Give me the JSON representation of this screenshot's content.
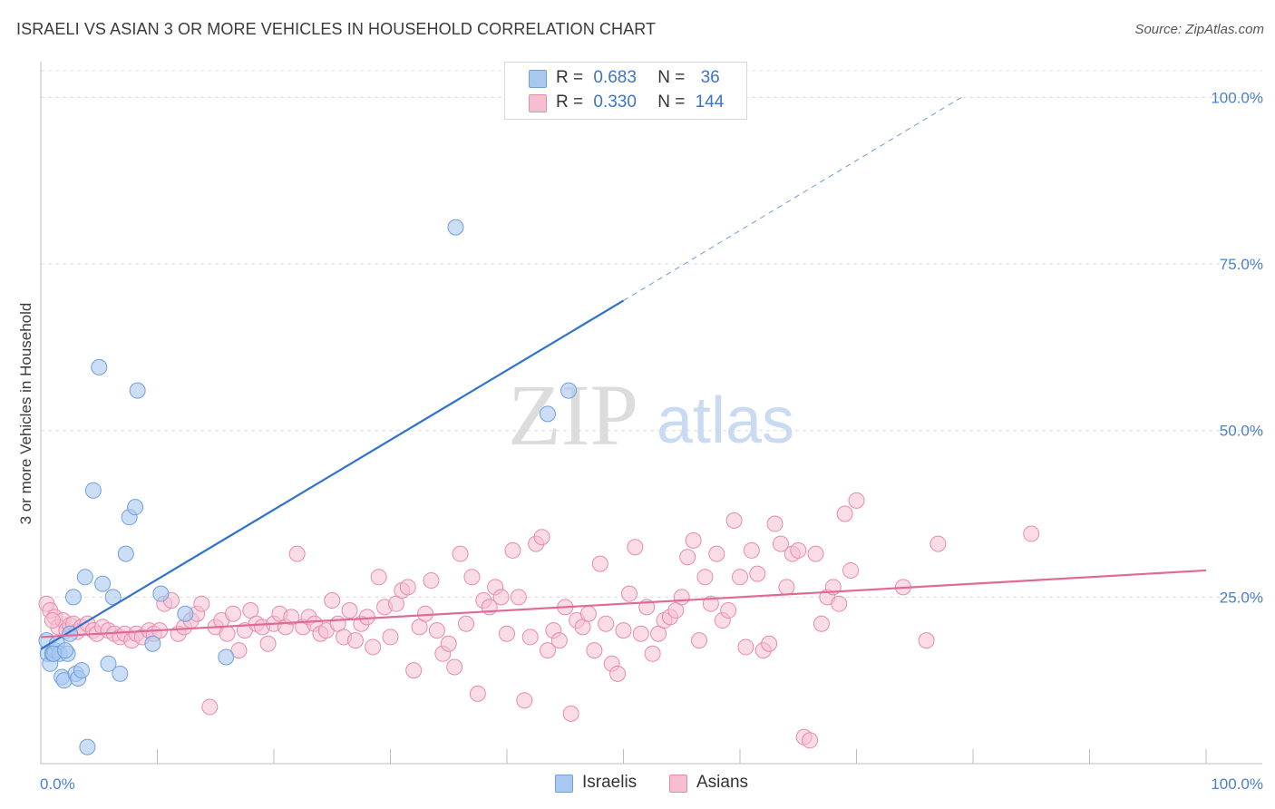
{
  "title": "ISRAELI VS ASIAN 3 OR MORE VEHICLES IN HOUSEHOLD CORRELATION CHART",
  "source": "Source: ZipAtlas.com",
  "watermark": {
    "zip": "ZIP",
    "atlas": "atlas"
  },
  "legend": {
    "r_label": "R =",
    "n_label": "N =",
    "items": [
      {
        "r": "0.683",
        "n": "36"
      },
      {
        "r": "0.330",
        "n": "144"
      }
    ]
  },
  "colors": {
    "israelis_fill": "#a9c8f0",
    "israelis_stroke": "#6f9fdd",
    "israelis_line": "#2f72cc",
    "asians_fill": "#f6bfd1",
    "asians_stroke": "#e98aac",
    "asians_line": "#e06a97",
    "axis_tick_text": "#4a7fd0",
    "grid": "#dcdcdc"
  },
  "chart_data": {
    "type": "scatter",
    "title": "ISRAELI VS ASIAN 3 OR MORE VEHICLES IN HOUSEHOLD CORRELATION CHART",
    "xlabel": "",
    "ylabel": "3 or more Vehicles in Household",
    "xlim": [
      0,
      100
    ],
    "ylim": [
      0,
      104
    ],
    "x_tick_labels": [
      "0.0%",
      "100.0%"
    ],
    "y_ticks": [
      25,
      50,
      75,
      100
    ],
    "y_tick_labels": [
      "25.0%",
      "50.0%",
      "75.0%",
      "100.0%"
    ],
    "grid": true,
    "legend_position": "top-center",
    "series": [
      {
        "name": "Israelis",
        "r": 0.683,
        "n": 36,
        "trend": {
          "x0": 0,
          "y0": 17.2,
          "x1": 50,
          "y1": 69.5,
          "dash_x1": 79,
          "dash_y1": 100
        },
        "points": [
          [
            0.5,
            18.5
          ],
          [
            0.6,
            16.5
          ],
          [
            0.8,
            15.0
          ],
          [
            1.0,
            16.5
          ],
          [
            1.2,
            17.0
          ],
          [
            1.4,
            18.0
          ],
          [
            1.6,
            16.5
          ],
          [
            1.8,
            13.0
          ],
          [
            2.0,
            12.5
          ],
          [
            2.3,
            16.5
          ],
          [
            2.5,
            19.5
          ],
          [
            2.8,
            25.0
          ],
          [
            3.0,
            13.5
          ],
          [
            3.2,
            12.8
          ],
          [
            3.5,
            14.0
          ],
          [
            3.8,
            28.0
          ],
          [
            4.0,
            2.5
          ],
          [
            4.5,
            41.0
          ],
          [
            5.0,
            59.5
          ],
          [
            5.3,
            27.0
          ],
          [
            5.8,
            15.0
          ],
          [
            6.2,
            25.0
          ],
          [
            6.8,
            13.5
          ],
          [
            7.3,
            31.5
          ],
          [
            7.6,
            37.0
          ],
          [
            8.1,
            38.5
          ],
          [
            8.3,
            56.0
          ],
          [
            9.6,
            18.0
          ],
          [
            10.3,
            25.5
          ],
          [
            12.4,
            22.5
          ],
          [
            15.9,
            16.0
          ],
          [
            35.6,
            80.5
          ],
          [
            43.5,
            52.5
          ],
          [
            45.3,
            56.0
          ],
          [
            1.1,
            16.5
          ],
          [
            2.1,
            17.0
          ]
        ]
      },
      {
        "name": "Asians",
        "r": 0.33,
        "n": 144,
        "trend": {
          "x0": 0,
          "y0": 19.0,
          "x1": 100,
          "y1": 29.0
        },
        "points": [
          [
            0.5,
            24.0
          ],
          [
            0.8,
            23.0
          ],
          [
            1.2,
            22.0
          ],
          [
            1.5,
            20.5
          ],
          [
            1.9,
            21.5
          ],
          [
            2.2,
            20.0
          ],
          [
            2.5,
            20.8
          ],
          [
            2.8,
            21.0
          ],
          [
            3.1,
            19.8
          ],
          [
            3.5,
            20.5
          ],
          [
            4.0,
            21.0
          ],
          [
            4.5,
            20.0
          ],
          [
            4.8,
            19.5
          ],
          [
            5.3,
            20.5
          ],
          [
            5.8,
            20.0
          ],
          [
            6.3,
            19.5
          ],
          [
            6.8,
            19.0
          ],
          [
            7.2,
            19.5
          ],
          [
            7.8,
            18.5
          ],
          [
            8.2,
            19.5
          ],
          [
            8.7,
            19.0
          ],
          [
            9.3,
            20.0
          ],
          [
            9.7,
            19.5
          ],
          [
            10.2,
            20.0
          ],
          [
            10.6,
            24.0
          ],
          [
            11.2,
            24.5
          ],
          [
            11.8,
            19.5
          ],
          [
            12.3,
            20.5
          ],
          [
            12.9,
            21.5
          ],
          [
            13.4,
            22.5
          ],
          [
            13.8,
            24.0
          ],
          [
            14.5,
            8.5
          ],
          [
            15.0,
            20.5
          ],
          [
            15.5,
            21.5
          ],
          [
            16.0,
            19.5
          ],
          [
            16.5,
            22.5
          ],
          [
            17.0,
            17.0
          ],
          [
            17.5,
            20.0
          ],
          [
            18.0,
            23.0
          ],
          [
            18.5,
            21.0
          ],
          [
            19.0,
            20.5
          ],
          [
            19.5,
            18.0
          ],
          [
            20.0,
            21.0
          ],
          [
            20.5,
            22.5
          ],
          [
            21.0,
            20.5
          ],
          [
            21.5,
            22.0
          ],
          [
            22.0,
            31.5
          ],
          [
            22.5,
            20.5
          ],
          [
            23.0,
            22.0
          ],
          [
            23.5,
            21.0
          ],
          [
            24.0,
            19.5
          ],
          [
            24.5,
            20.0
          ],
          [
            25.0,
            24.5
          ],
          [
            25.5,
            21.0
          ],
          [
            26.0,
            19.0
          ],
          [
            26.5,
            23.0
          ],
          [
            27.0,
            18.5
          ],
          [
            27.5,
            21.0
          ],
          [
            28.0,
            22.0
          ],
          [
            28.5,
            17.5
          ],
          [
            29.0,
            28.0
          ],
          [
            29.5,
            23.5
          ],
          [
            30.0,
            19.0
          ],
          [
            30.5,
            24.0
          ],
          [
            31.0,
            26.0
          ],
          [
            31.5,
            26.5
          ],
          [
            32.0,
            14.0
          ],
          [
            32.5,
            20.5
          ],
          [
            33.0,
            22.5
          ],
          [
            33.5,
            27.5
          ],
          [
            34.0,
            20.0
          ],
          [
            34.5,
            16.5
          ],
          [
            35.0,
            18.0
          ],
          [
            35.5,
            14.5
          ],
          [
            36.0,
            31.5
          ],
          [
            36.5,
            21.0
          ],
          [
            37.0,
            28.0
          ],
          [
            37.5,
            10.5
          ],
          [
            38.0,
            24.5
          ],
          [
            38.5,
            23.5
          ],
          [
            39.0,
            26.5
          ],
          [
            39.5,
            25.0
          ],
          [
            40.0,
            19.5
          ],
          [
            40.5,
            32.0
          ],
          [
            41.0,
            25.0
          ],
          [
            41.5,
            9.5
          ],
          [
            42.0,
            19.0
          ],
          [
            42.5,
            33.0
          ],
          [
            43.0,
            34.0
          ],
          [
            43.5,
            17.0
          ],
          [
            44.0,
            20.0
          ],
          [
            44.5,
            18.5
          ],
          [
            45.0,
            23.5
          ],
          [
            45.5,
            7.5
          ],
          [
            46.0,
            21.5
          ],
          [
            46.5,
            20.5
          ],
          [
            47.0,
            22.5
          ],
          [
            47.5,
            17.0
          ],
          [
            48.0,
            30.0
          ],
          [
            48.5,
            21.0
          ],
          [
            49.0,
            15.0
          ],
          [
            49.5,
            13.5
          ],
          [
            50.0,
            20.0
          ],
          [
            50.5,
            25.5
          ],
          [
            51.0,
            32.5
          ],
          [
            51.5,
            19.5
          ],
          [
            52.0,
            23.5
          ],
          [
            52.5,
            16.5
          ],
          [
            53.0,
            19.5
          ],
          [
            53.5,
            21.5
          ],
          [
            54.0,
            22.0
          ],
          [
            54.5,
            23.0
          ],
          [
            55.0,
            25.0
          ],
          [
            55.5,
            31.0
          ],
          [
            56.0,
            33.5
          ],
          [
            56.5,
            18.5
          ],
          [
            57.0,
            28.0
          ],
          [
            57.5,
            24.0
          ],
          [
            58.0,
            31.5
          ],
          [
            58.5,
            21.5
          ],
          [
            59.0,
            23.0
          ],
          [
            59.5,
            36.5
          ],
          [
            60.0,
            28.0
          ],
          [
            60.5,
            17.5
          ],
          [
            61.0,
            32.0
          ],
          [
            61.5,
            28.5
          ],
          [
            62.0,
            17.0
          ],
          [
            62.5,
            18.0
          ],
          [
            63.0,
            36.0
          ],
          [
            63.5,
            33.0
          ],
          [
            64.0,
            26.5
          ],
          [
            64.5,
            31.5
          ],
          [
            65.0,
            32.0
          ],
          [
            65.5,
            4.0
          ],
          [
            66.0,
            3.5
          ],
          [
            66.5,
            31.5
          ],
          [
            67.0,
            21.0
          ],
          [
            67.5,
            25.0
          ],
          [
            68.0,
            26.5
          ],
          [
            68.5,
            24.0
          ],
          [
            69.0,
            37.5
          ],
          [
            69.5,
            29.0
          ],
          [
            70.0,
            39.5
          ],
          [
            74.0,
            26.5
          ],
          [
            76.0,
            18.5
          ],
          [
            77.0,
            33.0
          ],
          [
            85.0,
            34.5
          ],
          [
            1.0,
            21.5
          ]
        ]
      }
    ]
  }
}
